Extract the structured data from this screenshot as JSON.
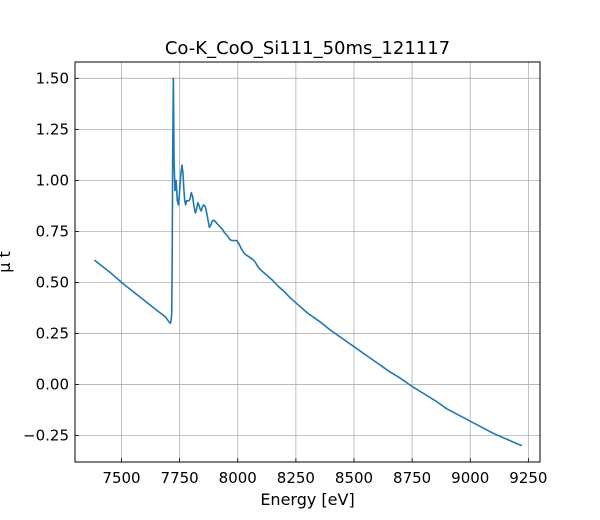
{
  "chart_data": {
    "type": "line",
    "title": "Co-K_CoO_Si111_50ms_121117",
    "xlabel": "Energy [eV]",
    "ylabel": "μ t",
    "xlim": [
      7300,
      9300
    ],
    "ylim": [
      -0.38,
      1.58
    ],
    "grid": true,
    "x_ticks": [
      7500,
      7750,
      8000,
      8250,
      8500,
      8750,
      9000,
      9250
    ],
    "x_tick_labels": [
      "7500",
      "7750",
      "8000",
      "8250",
      "8500",
      "8750",
      "9000",
      "9250"
    ],
    "y_ticks": [
      -0.25,
      0.0,
      0.25,
      0.5,
      0.75,
      1.0,
      1.25,
      1.5
    ],
    "y_tick_labels": [
      "−0.25",
      "0.00",
      "0.25",
      "0.50",
      "0.75",
      "1.00",
      "1.25",
      "1.50"
    ],
    "series": [
      {
        "color": "#1f77b4",
        "x": [
          7383,
          7450,
          7500,
          7550,
          7600,
          7650,
          7690,
          7705,
          7710,
          7713,
          7716,
          7718,
          7720,
          7723,
          7726,
          7730,
          7735,
          7740,
          7745,
          7750,
          7755,
          7760,
          7764,
          7768,
          7772,
          7776,
          7780,
          7785,
          7790,
          7795,
          7800,
          7806,
          7812,
          7818,
          7823,
          7828,
          7833,
          7838,
          7843,
          7848,
          7853,
          7858,
          7863,
          7868,
          7873,
          7878,
          7884,
          7890,
          7896,
          7902,
          7910,
          7918,
          7926,
          7934,
          7942,
          7950,
          7958,
          7966,
          7975,
          7985,
          7995,
          8005,
          8015,
          8025,
          8035,
          8045,
          8055,
          8065,
          8075,
          8085,
          8095,
          8105,
          8115,
          8130,
          8150,
          8175,
          8200,
          8225,
          8250,
          8275,
          8300,
          8350,
          8400,
          8450,
          8500,
          8550,
          8600,
          8650,
          8700,
          8750,
          8800,
          8850,
          8900,
          8950,
          9000,
          9050,
          9100,
          9150,
          9200,
          9222
        ],
        "y": [
          0.61,
          0.55,
          0.5,
          0.455,
          0.41,
          0.365,
          0.33,
          0.305,
          0.3,
          0.31,
          0.35,
          0.6,
          1.1,
          1.5,
          1.1,
          0.95,
          1.0,
          0.9,
          0.88,
          0.95,
          1.03,
          1.075,
          1.04,
          0.96,
          0.9,
          0.88,
          0.9,
          0.9,
          0.9,
          0.91,
          0.94,
          0.92,
          0.87,
          0.84,
          0.86,
          0.89,
          0.88,
          0.86,
          0.85,
          0.87,
          0.88,
          0.875,
          0.86,
          0.83,
          0.8,
          0.77,
          0.78,
          0.8,
          0.805,
          0.8,
          0.79,
          0.78,
          0.77,
          0.76,
          0.745,
          0.735,
          0.725,
          0.71,
          0.705,
          0.705,
          0.705,
          0.69,
          0.665,
          0.648,
          0.635,
          0.628,
          0.62,
          0.612,
          0.6,
          0.58,
          0.565,
          0.555,
          0.545,
          0.53,
          0.51,
          0.48,
          0.455,
          0.425,
          0.4,
          0.375,
          0.35,
          0.31,
          0.265,
          0.225,
          0.185,
          0.145,
          0.105,
          0.065,
          0.03,
          -0.01,
          -0.045,
          -0.08,
          -0.12,
          -0.15,
          -0.18,
          -0.21,
          -0.24,
          -0.265,
          -0.29,
          -0.3
        ]
      }
    ]
  }
}
